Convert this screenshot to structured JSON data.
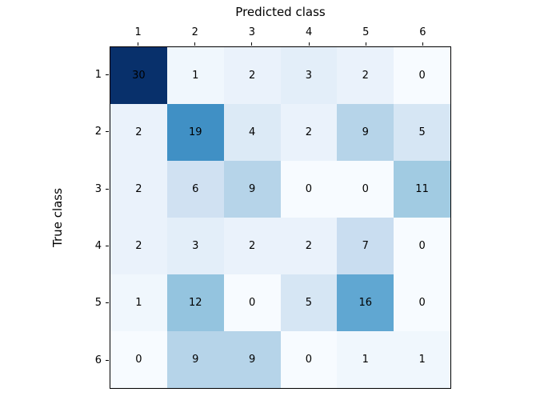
{
  "figure": {
    "background": "#ffffff"
  },
  "chart_data": {
    "type": "heatmap",
    "title": "Predicted class",
    "xlabel": "Predicted class",
    "ylabel": "True class",
    "x_tick_labels": [
      "1",
      "2",
      "3",
      "4",
      "5",
      "6"
    ],
    "y_tick_labels": [
      "1",
      "2",
      "3",
      "4",
      "5",
      "6"
    ],
    "matrix": [
      [
        30,
        1,
        2,
        3,
        2,
        0
      ],
      [
        2,
        19,
        4,
        2,
        9,
        5
      ],
      [
        2,
        6,
        9,
        0,
        0,
        11
      ],
      [
        2,
        3,
        2,
        2,
        7,
        0
      ],
      [
        1,
        12,
        0,
        5,
        16,
        0
      ],
      [
        0,
        9,
        9,
        0,
        1,
        1
      ]
    ],
    "vmin": 0,
    "vmax": 30,
    "colormap": "Blues",
    "colormap_stops": [
      [
        0.0,
        "#f7fbff"
      ],
      [
        0.125,
        "#deebf7"
      ],
      [
        0.25,
        "#c6dbef"
      ],
      [
        0.375,
        "#9ecae1"
      ],
      [
        0.5,
        "#6baed6"
      ],
      [
        0.625,
        "#4292c6"
      ],
      [
        0.75,
        "#2171b5"
      ],
      [
        0.875,
        "#08519c"
      ],
      [
        1.0,
        "#08306b"
      ]
    ],
    "cell_text_color": "#000000",
    "spine_color": "#000000",
    "grid": false,
    "legend": "none"
  }
}
